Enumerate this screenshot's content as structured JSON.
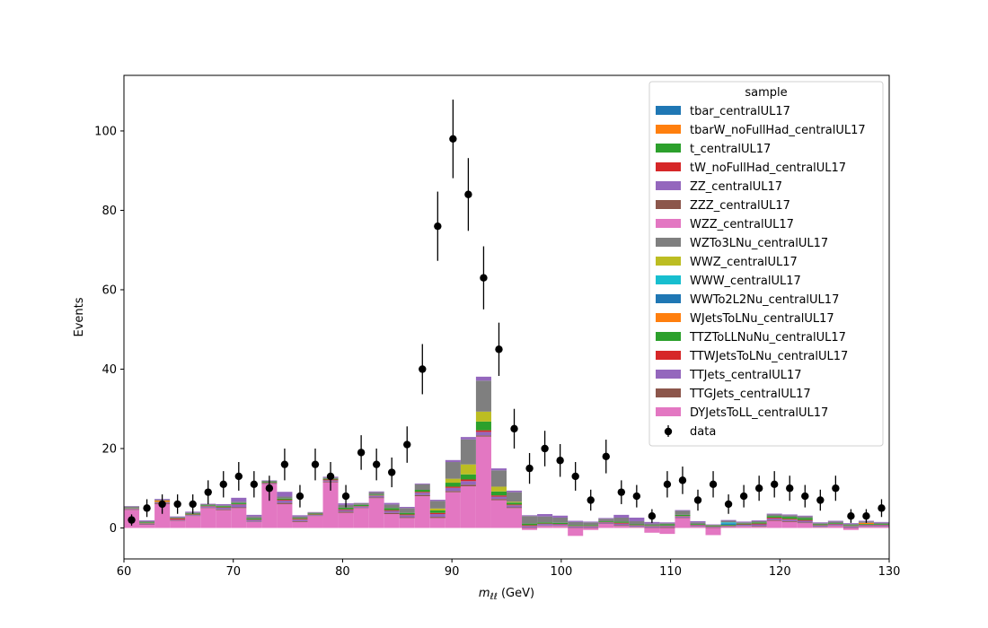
{
  "chart_data": {
    "type": "bar",
    "stacked": true,
    "xlabel": "m_ℓℓ (GeV)",
    "ylabel": "Events",
    "xlim": [
      60,
      130
    ],
    "ylim": [
      -7.8,
      114
    ],
    "xticks": [
      60,
      70,
      80,
      90,
      100,
      110,
      120,
      130
    ],
    "yticks": [
      0,
      20,
      40,
      60,
      80,
      100
    ],
    "bin_edges": [
      60.0,
      61.4,
      62.8,
      64.2,
      65.6,
      67.0,
      68.4,
      69.8,
      71.2,
      72.6,
      74.0,
      75.4,
      76.8,
      78.2,
      79.6,
      81.0,
      82.4,
      83.8,
      85.2,
      86.6,
      88.0,
      89.4,
      90.8,
      92.2,
      93.6,
      95.0,
      96.4,
      97.8,
      99.2,
      100.6,
      102.0,
      103.4,
      104.8,
      106.2,
      107.6,
      109.0,
      110.4,
      111.8,
      113.2,
      114.6,
      116.0,
      117.4,
      118.8,
      120.2,
      121.6,
      123.0,
      124.4,
      125.8,
      127.2,
      128.6,
      130.0
    ],
    "legend_title": "sample",
    "legend_position": "top-right",
    "series": [
      {
        "name": "tbar_centralUL17",
        "color": "#1f77b4",
        "values": []
      },
      {
        "name": "tbarW_noFullHad_centralUL17",
        "color": "#ff7f0e",
        "values": []
      },
      {
        "name": "t_centralUL17",
        "color": "#2ca02c",
        "values": []
      },
      {
        "name": "tW_noFullHad_centralUL17",
        "color": "#d62728",
        "values": []
      },
      {
        "name": "ZZ_centralUL17",
        "color": "#9467bd",
        "values": [
          0.1,
          0.2,
          0.2,
          0.2,
          0.2,
          0.1,
          0.3,
          1.0,
          0.4,
          0.1,
          1.2,
          0.3,
          0.1,
          0.2,
          0.4,
          0.1,
          0.2,
          0.4,
          0.3,
          0.2,
          0.3,
          0.5,
          0.6,
          1.0,
          0.5,
          0.4,
          0.2,
          0.6,
          0.5,
          0.3,
          0.2,
          0.2,
          0.7,
          0.9,
          0.4,
          0.2,
          0.2,
          0.3,
          0.1,
          0.2,
          0.2,
          0.2,
          0.2,
          0.2,
          0.2,
          0.2,
          0.2,
          0.2,
          0.2,
          0.2
        ]
      },
      {
        "name": "ZZZ_centralUL17",
        "color": "#8c564b",
        "values": []
      },
      {
        "name": "WZZ_centralUL17",
        "color": "#e377c2",
        "values": []
      },
      {
        "name": "WZTo3LNu_centralUL17",
        "color": "#7f7f7f",
        "values": [
          0.4,
          0.3,
          0.2,
          0.2,
          0.3,
          0.3,
          0.2,
          0.3,
          0.5,
          0.3,
          0.5,
          0.4,
          0.3,
          0.3,
          0.7,
          0.4,
          0.6,
          0.9,
          1.2,
          1.4,
          1.9,
          4.2,
          6.3,
          7.8,
          4.1,
          2.4,
          1.9,
          1.5,
          1.3,
          0.8,
          0.7,
          0.6,
          1.0,
          0.8,
          0.4,
          0.3,
          1.0,
          0.4,
          0.2,
          0.4,
          0.3,
          0.3,
          0.4,
          0.4,
          0.4,
          0.3,
          0.4,
          0.3,
          0.3,
          0.3
        ]
      },
      {
        "name": "WWZ_centralUL17",
        "color": "#bcbd22",
        "values": [
          0.0,
          0.0,
          0.0,
          0.0,
          0.0,
          0.0,
          0.0,
          0.0,
          0.0,
          0.0,
          0.0,
          0.0,
          0.0,
          0.0,
          0.0,
          0.0,
          0.0,
          0.0,
          0.0,
          0.0,
          0.5,
          1.0,
          2.5,
          2.5,
          1.2,
          0.2,
          0.0,
          0.0,
          0.0,
          0.0,
          0.0,
          0.0,
          0.0,
          0.0,
          0.0,
          0.0,
          0.0,
          0.0,
          0.0,
          0.0,
          0.0,
          0.0,
          0.0,
          0.0,
          0.0,
          0.0,
          0.0,
          0.0,
          0.0,
          0.0
        ]
      },
      {
        "name": "WWW_centralUL17",
        "color": "#17becf",
        "values": [
          0.0,
          0.0,
          0.0,
          0.0,
          0.0,
          0.0,
          0.0,
          0.0,
          0.0,
          0.0,
          0.0,
          0.0,
          0.0,
          0.0,
          0.0,
          0.0,
          0.0,
          0.0,
          0.0,
          0.0,
          0.0,
          0.0,
          0.0,
          0.0,
          0.0,
          0.0,
          0.0,
          0.0,
          0.0,
          0.0,
          0.0,
          0.0,
          0.0,
          0.0,
          0.0,
          0.0,
          0.0,
          0.0,
          0.0,
          0.3,
          0.0,
          0.0,
          0.0,
          0.0,
          0.0,
          0.0,
          0.0,
          0.0,
          0.0,
          0.0
        ]
      },
      {
        "name": "WWTo2L2Nu_centralUL17",
        "color": "#1f77b4",
        "values": [
          0.0,
          0.0,
          0.0,
          0.0,
          0.0,
          0.0,
          0.0,
          0.0,
          0.0,
          0.0,
          0.0,
          0.0,
          0.0,
          0.0,
          0.0,
          0.0,
          0.0,
          0.0,
          0.0,
          0.0,
          0.0,
          0.0,
          0.0,
          0.0,
          0.0,
          0.0,
          0.0,
          0.0,
          0.0,
          0.0,
          0.0,
          0.0,
          0.0,
          0.0,
          0.0,
          0.0,
          0.0,
          0.0,
          0.0,
          0.3,
          0.0,
          0.0,
          0.0,
          0.0,
          0.0,
          0.0,
          0.0,
          0.0,
          0.0,
          0.0
        ]
      },
      {
        "name": "WJetsToLNu_centralUL17",
        "color": "#ff7f0e",
        "values": [
          0.0,
          0.0,
          0.3,
          0.0,
          0.0,
          0.0,
          0.0,
          0.0,
          0.0,
          0.0,
          0.0,
          0.0,
          0.0,
          0.0,
          0.0,
          0.0,
          0.0,
          0.0,
          0.0,
          0.0,
          0.0,
          0.0,
          0.0,
          0.0,
          0.0,
          0.0,
          0.0,
          0.0,
          0.0,
          0.0,
          0.0,
          0.0,
          0.0,
          0.0,
          0.0,
          0.0,
          0.0,
          0.0,
          0.0,
          0.0,
          0.0,
          0.0,
          0.0,
          0.0,
          0.0,
          0.0,
          0.0,
          0.0,
          0.3,
          0.0
        ]
      },
      {
        "name": "TTZToLLNuNu_centralUL17",
        "color": "#2ca02c",
        "values": [
          0.1,
          0.2,
          0.1,
          0.1,
          0.2,
          0.2,
          0.3,
          0.3,
          0.3,
          0.2,
          0.3,
          0.2,
          0.2,
          0.2,
          0.4,
          0.3,
          0.2,
          0.5,
          0.4,
          0.5,
          0.6,
          1.0,
          1.3,
          2.2,
          1.0,
          0.5,
          0.4,
          0.3,
          0.3,
          0.2,
          0.2,
          0.2,
          0.3,
          0.2,
          0.2,
          0.3,
          0.3,
          0.2,
          0.2,
          0.2,
          0.2,
          0.3,
          0.4,
          0.5,
          0.5,
          0.2,
          0.2,
          0.2,
          0.2,
          0.2
        ]
      },
      {
        "name": "TTWJetsToLNu_centralUL17",
        "color": "#d62728",
        "values": [
          0.1,
          0.1,
          0.1,
          0.3,
          0.1,
          0.1,
          0.1,
          0.1,
          0.1,
          0.1,
          0.2,
          0.2,
          0.1,
          0.2,
          0.2,
          0.1,
          0.1,
          0.2,
          0.2,
          0.2,
          0.3,
          0.3,
          0.4,
          0.4,
          0.3,
          0.2,
          0.2,
          0.1,
          0.1,
          0.1,
          0.1,
          0.1,
          0.2,
          0.1,
          0.1,
          0.1,
          0.1,
          0.1,
          0.1,
          0.1,
          0.1,
          0.2,
          0.2,
          0.2,
          0.2,
          0.1,
          0.1,
          0.1,
          0.1,
          0.1
        ]
      },
      {
        "name": "TTJets_centralUL17",
        "color": "#9467bd",
        "values": [
          0.2,
          0.2,
          0.2,
          0.2,
          0.2,
          0.3,
          0.4,
          0.7,
          0.4,
          0.2,
          0.6,
          0.4,
          0.2,
          0.3,
          0.4,
          0.3,
          0.4,
          0.5,
          0.5,
          0.6,
          0.7,
          0.8,
          0.9,
          0.9,
          0.6,
          0.5,
          0.4,
          0.4,
          0.3,
          0.3,
          0.3,
          0.3,
          0.4,
          0.3,
          0.3,
          0.3,
          0.3,
          0.3,
          0.2,
          0.2,
          0.3,
          0.4,
          0.4,
          0.4,
          0.4,
          0.3,
          0.3,
          0.3,
          0.3,
          0.3
        ]
      },
      {
        "name": "TTGJets_centralUL17",
        "color": "#8c564b",
        "values": [
          0.1,
          0.1,
          0.2,
          0.1,
          0.1,
          0.1,
          0.2,
          0.2,
          0.1,
          0.1,
          0.3,
          0.2,
          0.1,
          0.2,
          0.3,
          0.1,
          0.2,
          0.3,
          0.2,
          0.3,
          0.3,
          0.3,
          0.4,
          0.3,
          0.3,
          0.2,
          0.1,
          0.1,
          0.1,
          0.1,
          0.1,
          0.1,
          0.2,
          0.1,
          0.1,
          0.2,
          0.1,
          0.1,
          0.1,
          0.1,
          0.1,
          0.2,
          0.2,
          0.2,
          0.2,
          0.1,
          0.1,
          0.1,
          0.1,
          0.1
        ]
      },
      {
        "name": "DYJetsToLL_centralUL17",
        "color": "#e377c2",
        "values": [
          4.5,
          0.8,
          6.0,
          1.8,
          3.0,
          5.0,
          4.5,
          5.0,
          1.5,
          11.0,
          6.0,
          1.5,
          3.0,
          11.5,
          3.8,
          5.0,
          7.5,
          3.5,
          2.5,
          8.0,
          2.5,
          9.0,
          10.5,
          23.0,
          7.0,
          5.0,
          -0.5,
          0.5,
          0.5,
          -2.0,
          -0.5,
          1.0,
          0.5,
          0.2,
          -1.2,
          -1.5,
          2.5,
          0.3,
          -1.8,
          0.2,
          0.4,
          0.3,
          1.8,
          1.5,
          1.2,
          0.2,
          0.5,
          -0.5,
          0.3,
          0.3
        ]
      }
    ],
    "data": {
      "name": "data",
      "marker_color": "#000000",
      "x": [
        60.7,
        62.1,
        63.5,
        64.9,
        66.3,
        67.7,
        69.1,
        70.5,
        71.9,
        73.3,
        74.7,
        76.1,
        77.5,
        78.9,
        80.3,
        81.7,
        83.1,
        84.5,
        85.9,
        87.3,
        88.7,
        90.1,
        91.5,
        92.9,
        94.3,
        95.7,
        97.1,
        98.5,
        99.9,
        101.3,
        102.7,
        104.1,
        105.5,
        106.9,
        108.3,
        109.7,
        111.1,
        112.5,
        113.9,
        115.3,
        116.7,
        118.1,
        119.5,
        120.9,
        122.3,
        123.7,
        125.1,
        126.5,
        127.9,
        129.3
      ],
      "y": [
        2,
        5,
        6,
        6,
        6,
        9,
        11,
        13,
        11,
        10,
        16,
        8,
        16,
        13,
        8,
        19,
        16,
        14,
        21,
        40,
        76,
        98,
        84,
        63,
        45,
        25,
        15,
        20,
        17,
        13,
        7,
        18,
        9,
        8,
        3,
        11,
        12,
        7,
        11,
        6,
        8,
        10,
        11,
        10,
        8,
        7,
        10,
        3,
        3,
        5
      ]
    }
  }
}
